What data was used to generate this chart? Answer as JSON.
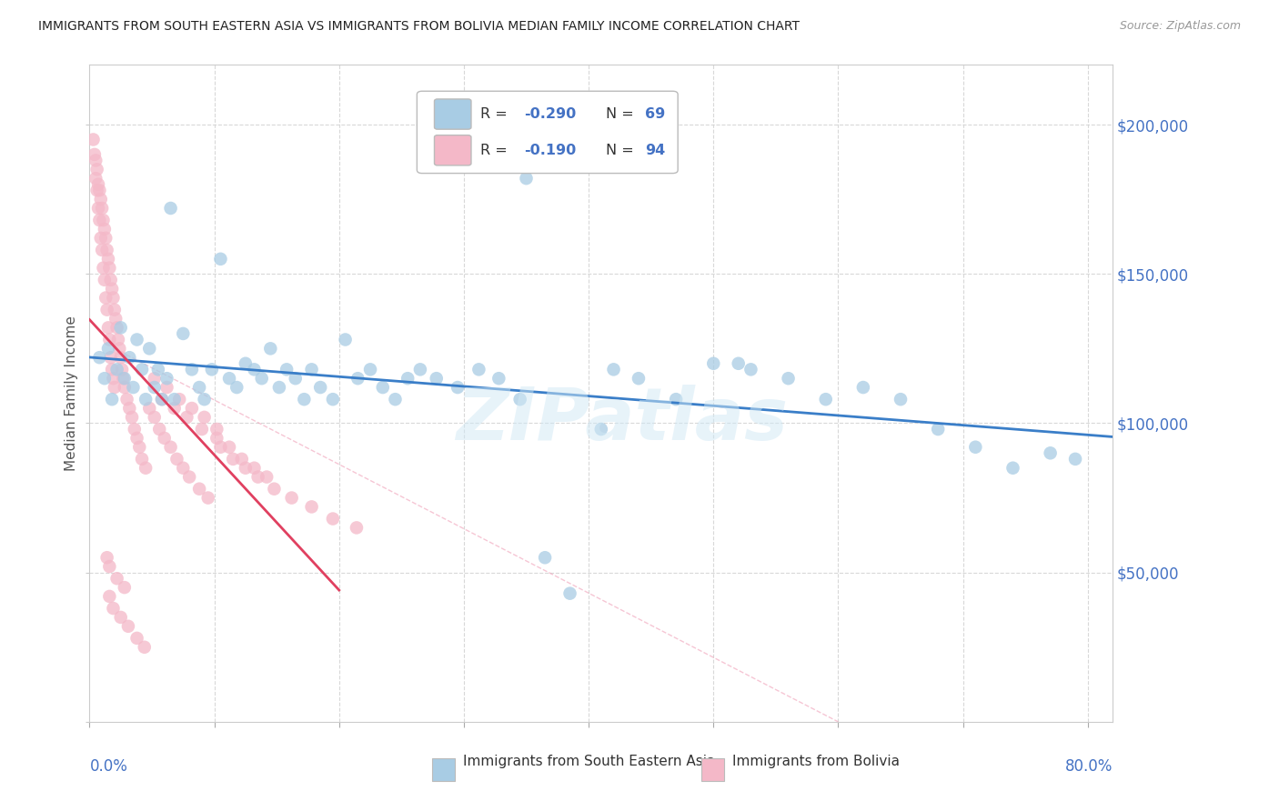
{
  "title": "IMMIGRANTS FROM SOUTH EASTERN ASIA VS IMMIGRANTS FROM BOLIVIA MEDIAN FAMILY INCOME CORRELATION CHART",
  "source": "Source: ZipAtlas.com",
  "ylabel": "Median Family Income",
  "color_blue": "#a8cce4",
  "color_pink": "#f4b8c8",
  "color_line_blue": "#3a7ec8",
  "color_line_pink": "#e04060",
  "color_ytick": "#4472c4",
  "color_xtick": "#4472c4",
  "watermark": "ZIPatlas",
  "xlim": [
    0.0,
    0.82
  ],
  "ylim": [
    0,
    220000
  ],
  "yticks": [
    0,
    50000,
    100000,
    150000,
    200000
  ],
  "xticks": [
    0.0,
    0.1,
    0.2,
    0.3,
    0.4,
    0.5,
    0.6,
    0.7,
    0.8
  ],
  "blue_x": [
    0.008,
    0.012,
    0.015,
    0.018,
    0.022,
    0.025,
    0.028,
    0.032,
    0.035,
    0.038,
    0.042,
    0.045,
    0.048,
    0.052,
    0.055,
    0.058,
    0.062,
    0.065,
    0.068,
    0.075,
    0.082,
    0.088,
    0.092,
    0.098,
    0.105,
    0.112,
    0.118,
    0.125,
    0.132,
    0.138,
    0.145,
    0.152,
    0.158,
    0.165,
    0.172,
    0.178,
    0.185,
    0.195,
    0.205,
    0.215,
    0.225,
    0.235,
    0.245,
    0.255,
    0.265,
    0.278,
    0.295,
    0.312,
    0.328,
    0.345,
    0.365,
    0.385,
    0.41,
    0.44,
    0.47,
    0.5,
    0.53,
    0.56,
    0.59,
    0.62,
    0.65,
    0.68,
    0.71,
    0.74,
    0.77,
    0.79,
    0.35,
    0.42,
    0.52
  ],
  "blue_y": [
    122000,
    115000,
    125000,
    108000,
    118000,
    132000,
    115000,
    122000,
    112000,
    128000,
    118000,
    108000,
    125000,
    112000,
    118000,
    108000,
    115000,
    172000,
    108000,
    130000,
    118000,
    112000,
    108000,
    118000,
    155000,
    115000,
    112000,
    120000,
    118000,
    115000,
    125000,
    112000,
    118000,
    115000,
    108000,
    118000,
    112000,
    108000,
    128000,
    115000,
    118000,
    112000,
    108000,
    115000,
    118000,
    115000,
    112000,
    118000,
    115000,
    108000,
    55000,
    43000,
    98000,
    115000,
    108000,
    120000,
    118000,
    115000,
    108000,
    112000,
    108000,
    98000,
    92000,
    85000,
    90000,
    88000,
    182000,
    118000,
    120000
  ],
  "pink_x": [
    0.003,
    0.004,
    0.005,
    0.005,
    0.006,
    0.006,
    0.007,
    0.007,
    0.008,
    0.008,
    0.009,
    0.009,
    0.01,
    0.01,
    0.011,
    0.011,
    0.012,
    0.012,
    0.013,
    0.013,
    0.014,
    0.014,
    0.015,
    0.015,
    0.016,
    0.016,
    0.017,
    0.017,
    0.018,
    0.018,
    0.019,
    0.019,
    0.02,
    0.02,
    0.021,
    0.022,
    0.023,
    0.024,
    0.025,
    0.026,
    0.027,
    0.028,
    0.03,
    0.032,
    0.034,
    0.036,
    0.038,
    0.04,
    0.042,
    0.045,
    0.048,
    0.052,
    0.056,
    0.06,
    0.065,
    0.07,
    0.075,
    0.08,
    0.088,
    0.095,
    0.105,
    0.115,
    0.125,
    0.135,
    0.148,
    0.162,
    0.178,
    0.195,
    0.214,
    0.058,
    0.068,
    0.078,
    0.09,
    0.102,
    0.112,
    0.122,
    0.132,
    0.142,
    0.052,
    0.062,
    0.072,
    0.082,
    0.092,
    0.102,
    0.014,
    0.016,
    0.022,
    0.028,
    0.016,
    0.019,
    0.025,
    0.031,
    0.038,
    0.044
  ],
  "pink_y": [
    195000,
    190000,
    188000,
    182000,
    185000,
    178000,
    180000,
    172000,
    178000,
    168000,
    175000,
    162000,
    172000,
    158000,
    168000,
    152000,
    165000,
    148000,
    162000,
    142000,
    158000,
    138000,
    155000,
    132000,
    152000,
    128000,
    148000,
    122000,
    145000,
    118000,
    142000,
    115000,
    138000,
    112000,
    135000,
    132000,
    128000,
    125000,
    122000,
    118000,
    115000,
    112000,
    108000,
    105000,
    102000,
    98000,
    95000,
    92000,
    88000,
    85000,
    105000,
    102000,
    98000,
    95000,
    92000,
    88000,
    85000,
    82000,
    78000,
    75000,
    92000,
    88000,
    85000,
    82000,
    78000,
    75000,
    72000,
    68000,
    65000,
    108000,
    105000,
    102000,
    98000,
    95000,
    92000,
    88000,
    85000,
    82000,
    115000,
    112000,
    108000,
    105000,
    102000,
    98000,
    55000,
    52000,
    48000,
    45000,
    42000,
    38000,
    35000,
    32000,
    28000,
    25000
  ]
}
